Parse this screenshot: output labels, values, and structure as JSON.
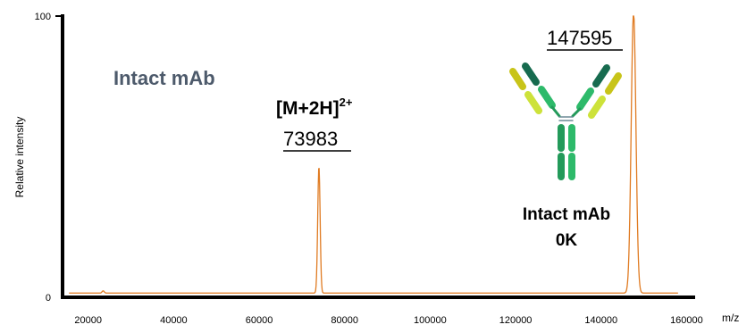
{
  "chart_data": {
    "type": "line",
    "title": "",
    "xlabel": "m/z",
    "ylabel": "Relative intensity",
    "xlim": [
      14000,
      162000
    ],
    "ylim": [
      0,
      100
    ],
    "x_ticks": [
      20000,
      40000,
      60000,
      80000,
      100000,
      120000,
      140000,
      160000
    ],
    "x_tick_labels": [
      "20000",
      "40000",
      "60000",
      "80000",
      100000,
      "120000",
      "140000",
      "160000"
    ],
    "y_ticks": [
      0,
      100
    ],
    "y_tick_labels": [
      "0",
      "100"
    ],
    "grid": false,
    "line_color": "#e07b22",
    "series": [
      {
        "peaks": [
          {
            "x": 23500,
            "y": 0.8,
            "w": 250
          },
          {
            "x": 73983,
            "y": 45,
            "w": 280
          },
          {
            "x": 147595,
            "y": 100,
            "w": 550
          }
        ],
        "baseline": 1.5
      }
    ],
    "annotations": {
      "panel_title": "Intact mAb",
      "ion_label": "[M+2H]",
      "ion_charge": "2+",
      "mass_2h": "73983",
      "mass_intact": "147595",
      "antibody_label_line1": "Intact mAb",
      "antibody_label_line2": "0K"
    },
    "antibody_colors": {
      "light_outer": "#c8c419",
      "light_inner": "#cde23a",
      "heavy_dark": "#176b4f",
      "heavy_mid": "#239a5a",
      "heavy_light": "#2dba6a",
      "hinge": "#b5c7ce"
    }
  },
  "labels": {
    "x_tick_100000": "100000"
  }
}
